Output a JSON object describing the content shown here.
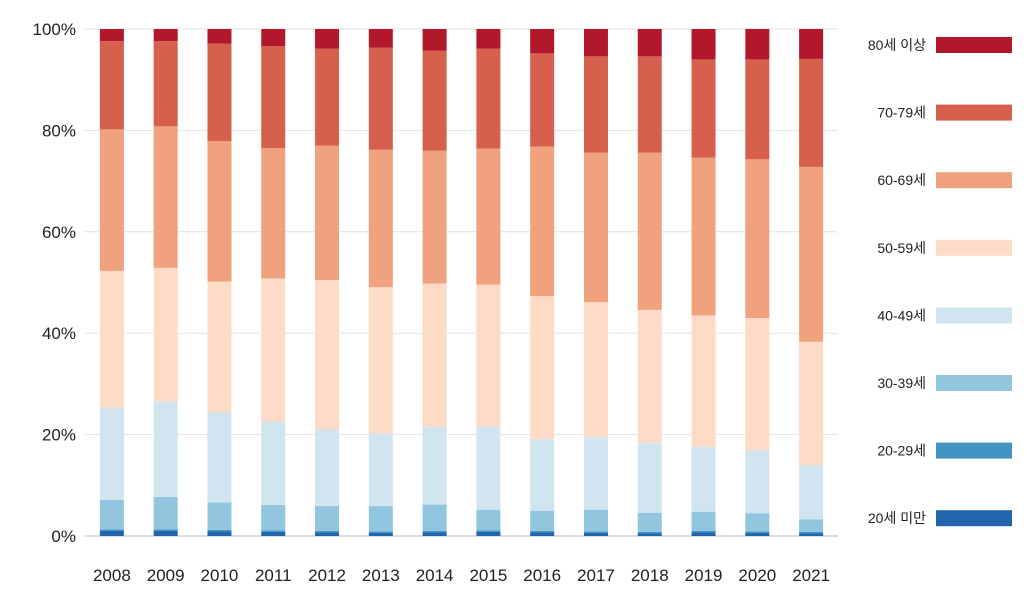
{
  "chart_data": {
    "type": "bar",
    "stacked": true,
    "percent": true,
    "categories": [
      "2008",
      "2009",
      "2010",
      "2011",
      "2012",
      "2013",
      "2014",
      "2015",
      "2016",
      "2017",
      "2018",
      "2019",
      "2020",
      "2021"
    ],
    "ylim": [
      0,
      100
    ],
    "yticks": [
      "0%",
      "20%",
      "40%",
      "60%",
      "80%",
      "100%"
    ],
    "grid": true,
    "legend_position": "right",
    "series": [
      {
        "name": "20세 미만",
        "color": "#2166ac",
        "values": [
          1.0,
          1.0,
          0.9,
          0.8,
          0.7,
          0.6,
          0.7,
          0.8,
          0.7,
          0.6,
          0.5,
          0.7,
          0.6,
          0.5
        ]
      },
      {
        "name": "20-29세",
        "color": "#4393c3",
        "values": [
          0.3,
          0.3,
          0.3,
          0.3,
          0.3,
          0.3,
          0.3,
          0.3,
          0.3,
          0.3,
          0.3,
          0.3,
          0.3,
          0.3
        ]
      },
      {
        "name": "30-39세",
        "color": "#92c5de",
        "values": [
          5.8,
          6.4,
          5.4,
          5.0,
          4.9,
          5.0,
          5.2,
          4.1,
          4.0,
          4.3,
          3.8,
          3.8,
          3.6,
          2.5
        ]
      },
      {
        "name": "40-49세",
        "color": "#d1e5f0",
        "values": [
          18.2,
          18.8,
          17.8,
          16.5,
          15.1,
          14.3,
          15.3,
          16.4,
          14.1,
          14.3,
          13.8,
          12.8,
          12.4,
          10.7
        ]
      },
      {
        "name": "50-59세",
        "color": "#fddbc7",
        "values": [
          27.0,
          26.4,
          25.8,
          28.2,
          29.5,
          28.9,
          28.3,
          28.0,
          28.2,
          26.6,
          26.2,
          25.9,
          26.1,
          24.3
        ]
      },
      {
        "name": "60-69세",
        "color": "#f0a17e",
        "values": [
          27.9,
          27.9,
          27.7,
          25.7,
          26.5,
          27.1,
          26.2,
          26.8,
          29.5,
          29.5,
          31.0,
          31.1,
          31.3,
          34.5
        ]
      },
      {
        "name": "70-79세",
        "color": "#d6604d",
        "values": [
          17.4,
          16.8,
          19.2,
          20.1,
          19.1,
          20.1,
          19.7,
          19.7,
          18.4,
          19.0,
          19.0,
          19.4,
          19.7,
          21.3
        ]
      },
      {
        "name": "80세 이상",
        "color": "#b2182b",
        "values": [
          2.4,
          2.4,
          2.9,
          3.4,
          3.9,
          3.7,
          4.3,
          3.9,
          4.8,
          5.4,
          5.4,
          6.0,
          6.0,
          5.9
        ]
      }
    ]
  }
}
